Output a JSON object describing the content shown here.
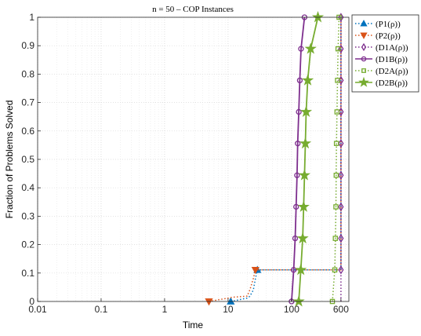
{
  "chart_data": {
    "type": "line",
    "title": "n = 50 – COP Instances",
    "xlabel": "Time",
    "ylabel": "Fraction of Problems Solved",
    "x_scale": "log",
    "xlim": [
      0.01,
      800
    ],
    "ylim": [
      0,
      1
    ],
    "x_ticks": [
      {
        "value": 0.01,
        "label": "0.01"
      },
      {
        "value": 0.1,
        "label": "0.1"
      },
      {
        "value": 1,
        "label": "1"
      },
      {
        "value": 10,
        "label": "10"
      },
      {
        "value": 100,
        "label": "100"
      },
      {
        "value": 600,
        "label": "600"
      }
    ],
    "y_ticks": [
      {
        "value": 0,
        "label": "0"
      },
      {
        "value": 0.1,
        "label": "0.1"
      },
      {
        "value": 0.2,
        "label": "0.2"
      },
      {
        "value": 0.3,
        "label": "0.3"
      },
      {
        "value": 0.4,
        "label": "0.4"
      },
      {
        "value": 0.5,
        "label": "0.5"
      },
      {
        "value": 0.6,
        "label": "0.6"
      },
      {
        "value": 0.7,
        "label": "0.7"
      },
      {
        "value": 0.8,
        "label": "0.8"
      },
      {
        "value": 0.9,
        "label": "0.9"
      },
      {
        "value": 1,
        "label": "1"
      }
    ],
    "grid": true,
    "legend_position": "outside-top-right",
    "series": [
      {
        "name": "(P1(ρ))",
        "color": "#0072bd",
        "dash": "dotted",
        "marker": "triangle-up",
        "points": [
          [
            11,
            0
          ],
          [
            13,
            0.003
          ],
          [
            15,
            0.006
          ],
          [
            18,
            0.01
          ],
          [
            20,
            0.012
          ],
          [
            22,
            0.018
          ],
          [
            25,
            0.04
          ],
          [
            27,
            0.08
          ],
          [
            29,
            0.111
          ],
          [
            600,
            0.111
          ],
          [
            600,
            1
          ]
        ],
        "marker_points": [
          [
            11,
            0
          ],
          [
            29,
            0.111
          ]
        ]
      },
      {
        "name": "(P2(ρ))",
        "color": "#d95319",
        "dash": "dotted",
        "marker": "triangle-down",
        "points": [
          [
            5,
            0
          ],
          [
            6,
            0.003
          ],
          [
            7,
            0.006
          ],
          [
            9,
            0.01
          ],
          [
            12,
            0.015
          ],
          [
            16,
            0.017
          ],
          [
            20,
            0.019
          ],
          [
            22,
            0.04
          ],
          [
            25,
            0.08
          ],
          [
            27,
            0.111
          ],
          [
            600,
            0.111
          ],
          [
            600,
            1
          ]
        ],
        "marker_points": [
          [
            5,
            0
          ],
          [
            27,
            0.111
          ]
        ]
      },
      {
        "name": "(D1A(ρ))",
        "color": "#7e2f8e",
        "dash": "dotted",
        "marker": "diamond",
        "points": [
          [
            600,
            0
          ],
          [
            600,
            0.111
          ],
          [
            600,
            0.222
          ],
          [
            600,
            0.333
          ],
          [
            600,
            0.444
          ],
          [
            600,
            0.556
          ],
          [
            600,
            0.667
          ],
          [
            600,
            0.778
          ],
          [
            600,
            0.889
          ],
          [
            600,
            1
          ]
        ],
        "marker_points": [
          [
            600,
            0.111
          ],
          [
            600,
            0.222
          ],
          [
            600,
            0.333
          ],
          [
            600,
            0.444
          ],
          [
            600,
            0.556
          ],
          [
            600,
            0.667
          ],
          [
            600,
            0.778
          ],
          [
            600,
            0.889
          ],
          [
            600,
            1
          ]
        ]
      },
      {
        "name": "(D1B(ρ))",
        "color": "#7e2f8e",
        "dash": "solid",
        "marker": "circle",
        "points": [
          [
            100,
            0
          ],
          [
            108,
            0.111
          ],
          [
            114,
            0.222
          ],
          [
            118,
            0.333
          ],
          [
            122,
            0.444
          ],
          [
            125,
            0.556
          ],
          [
            130,
            0.667
          ],
          [
            135,
            0.778
          ],
          [
            141,
            0.889
          ],
          [
            160,
            1
          ]
        ],
        "marker_points": [
          [
            100,
            0
          ],
          [
            108,
            0.111
          ],
          [
            114,
            0.222
          ],
          [
            118,
            0.333
          ],
          [
            122,
            0.444
          ],
          [
            125,
            0.556
          ],
          [
            130,
            0.667
          ],
          [
            135,
            0.778
          ],
          [
            141,
            0.889
          ],
          [
            160,
            1
          ]
        ]
      },
      {
        "name": "(D2A(ρ))",
        "color": "#77ac30",
        "dash": "dotted",
        "marker": "square",
        "points": [
          [
            440,
            0
          ],
          [
            480,
            0.111
          ],
          [
            490,
            0.222
          ],
          [
            500,
            0.333
          ],
          [
            505,
            0.444
          ],
          [
            510,
            0.556
          ],
          [
            520,
            0.667
          ],
          [
            530,
            0.778
          ],
          [
            540,
            0.889
          ],
          [
            560,
            1
          ]
        ],
        "marker_points": [
          [
            440,
            0
          ],
          [
            480,
            0.111
          ],
          [
            490,
            0.222
          ],
          [
            500,
            0.333
          ],
          [
            505,
            0.444
          ],
          [
            510,
            0.556
          ],
          [
            520,
            0.667
          ],
          [
            530,
            0.778
          ],
          [
            540,
            0.889
          ],
          [
            560,
            1
          ]
        ]
      },
      {
        "name": "(D2B(ρ))",
        "color": "#77ac30",
        "dash": "solid",
        "marker": "star",
        "points": [
          [
            130,
            0
          ],
          [
            140,
            0.111
          ],
          [
            150,
            0.222
          ],
          [
            155,
            0.333
          ],
          [
            160,
            0.444
          ],
          [
            165,
            0.556
          ],
          [
            170,
            0.667
          ],
          [
            180,
            0.778
          ],
          [
            200,
            0.889
          ],
          [
            260,
            1
          ]
        ],
        "marker_points": [
          [
            130,
            0
          ],
          [
            140,
            0.111
          ],
          [
            150,
            0.222
          ],
          [
            155,
            0.333
          ],
          [
            160,
            0.444
          ],
          [
            165,
            0.556
          ],
          [
            170,
            0.667
          ],
          [
            180,
            0.778
          ],
          [
            200,
            0.889
          ],
          [
            260,
            1
          ]
        ]
      }
    ]
  }
}
